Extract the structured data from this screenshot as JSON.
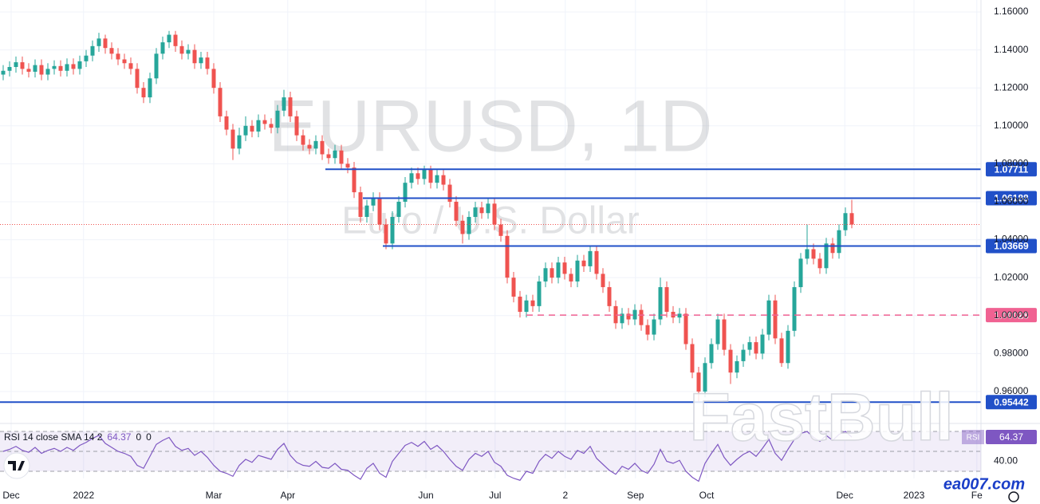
{
  "chart_data": {
    "type": "candlestick",
    "title": "EURUSD, 1D",
    "subtitle": "Euro / U.S. Dollar",
    "colors": {
      "up": "#26a69a",
      "down": "#ef5350"
    },
    "grid": true,
    "xlim": [
      -0.5,
      153.25
    ],
    "xticks": [
      {
        "value": 1.25,
        "label": "Dec"
      },
      {
        "value": 12.6,
        "label": "2022"
      },
      {
        "value": 33,
        "label": "Mar"
      },
      {
        "value": 44.6,
        "label": "Apr"
      },
      {
        "value": 66.25,
        "label": "Jun"
      },
      {
        "value": 77.1,
        "label": "Jul"
      },
      {
        "value": 88.1,
        "label": "2"
      },
      {
        "value": 99.1,
        "label": "Sep"
      },
      {
        "value": 110.25,
        "label": "Oct"
      },
      {
        "value": 131.9,
        "label": "Dec"
      },
      {
        "value": 142.75,
        "label": "2023"
      },
      {
        "value": 152.6,
        "label": "Fe"
      }
    ],
    "ylim": [
      0.9478,
      1.1663
    ],
    "yticks": [
      {
        "value": 0.96,
        "label": "0.96000"
      },
      {
        "value": 0.98,
        "label": "0.98000"
      },
      {
        "value": 1.0,
        "label": "1.00000"
      },
      {
        "value": 1.02,
        "label": "1.02000"
      },
      {
        "value": 1.04,
        "label": "1.04000"
      },
      {
        "value": 1.06,
        "label": "1.06000"
      },
      {
        "value": 1.08,
        "label": "1.08000"
      },
      {
        "value": 1.1,
        "label": "1.10000"
      },
      {
        "value": 1.12,
        "label": "1.12000"
      },
      {
        "value": 1.14,
        "label": "1.14000"
      },
      {
        "value": 1.16,
        "label": "1.16000"
      }
    ],
    "candles": [
      [
        1.127,
        1.132,
        1.124,
        1.129
      ],
      [
        1.129,
        1.134,
        1.126,
        1.131
      ],
      [
        1.131,
        1.1365,
        1.128,
        1.1335
      ],
      [
        1.1335,
        1.1365,
        1.127,
        1.13
      ],
      [
        1.13,
        1.133,
        1.1255,
        1.1285
      ],
      [
        1.1285,
        1.135,
        1.1255,
        1.132
      ],
      [
        1.132,
        1.135,
        1.124,
        1.127
      ],
      [
        1.127,
        1.133,
        1.124,
        1.13
      ],
      [
        1.13,
        1.1345,
        1.127,
        1.1315
      ],
      [
        1.1315,
        1.1345,
        1.126,
        1.129
      ],
      [
        1.129,
        1.1355,
        1.126,
        1.1325
      ],
      [
        1.1325,
        1.1355,
        1.127,
        1.13
      ],
      [
        1.13,
        1.137,
        1.127,
        1.134
      ],
      [
        1.134,
        1.14,
        1.131,
        1.137
      ],
      [
        1.137,
        1.145,
        1.134,
        1.142
      ],
      [
        1.142,
        1.149,
        1.139,
        1.146
      ],
      [
        1.146,
        1.148,
        1.138,
        1.141
      ],
      [
        1.141,
        1.144,
        1.135,
        1.138
      ],
      [
        1.138,
        1.141,
        1.132,
        1.135
      ],
      [
        1.135,
        1.138,
        1.13,
        1.133
      ],
      [
        1.133,
        1.136,
        1.127,
        1.13
      ],
      [
        1.13,
        1.133,
        1.117,
        1.12
      ],
      [
        1.12,
        1.123,
        1.112,
        1.115
      ],
      [
        1.115,
        1.128,
        1.112,
        1.125
      ],
      [
        1.125,
        1.141,
        1.122,
        1.138
      ],
      [
        1.138,
        1.147,
        1.135,
        1.144
      ],
      [
        1.144,
        1.15,
        1.141,
        1.148
      ],
      [
        1.148,
        1.15,
        1.139,
        1.142
      ],
      [
        1.142,
        1.145,
        1.135,
        1.138
      ],
      [
        1.138,
        1.143,
        1.135,
        1.14
      ],
      [
        1.14,
        1.143,
        1.13,
        1.133
      ],
      [
        1.133,
        1.139,
        1.13,
        1.136
      ],
      [
        1.136,
        1.139,
        1.127,
        1.13
      ],
      [
        1.13,
        1.133,
        1.117,
        1.12
      ],
      [
        1.12,
        1.123,
        1.102,
        1.105
      ],
      [
        1.105,
        1.108,
        1.095,
        1.098
      ],
      [
        1.098,
        1.101,
        1.082,
        1.088
      ],
      [
        1.088,
        1.099,
        1.085,
        1.095
      ],
      [
        1.095,
        1.105,
        1.092,
        1.1
      ],
      [
        1.1,
        1.103,
        1.094,
        1.097
      ],
      [
        1.097,
        1.106,
        1.094,
        1.103
      ],
      [
        1.103,
        1.106,
        1.098,
        1.101
      ],
      [
        1.101,
        1.104,
        1.096,
        1.099
      ],
      [
        1.099,
        1.111,
        1.096,
        1.108
      ],
      [
        1.108,
        1.119,
        1.105,
        1.115
      ],
      [
        1.115,
        1.118,
        1.102,
        1.105
      ],
      [
        1.105,
        1.108,
        1.092,
        1.095
      ],
      [
        1.095,
        1.098,
        1.087,
        1.09
      ],
      [
        1.09,
        1.093,
        1.085,
        1.088
      ],
      [
        1.088,
        1.095,
        1.085,
        1.092
      ],
      [
        1.092,
        1.095,
        1.082,
        1.085
      ],
      [
        1.085,
        1.088,
        1.08,
        1.083
      ],
      [
        1.083,
        1.09,
        1.08,
        1.087
      ],
      [
        1.087,
        1.09,
        1.077,
        1.08
      ],
      [
        1.08,
        1.083,
        1.075,
        1.078
      ],
      [
        1.078,
        1.081,
        1.062,
        1.065
      ],
      [
        1.065,
        1.068,
        1.049,
        1.052
      ],
      [
        1.052,
        1.061,
        1.049,
        1.058
      ],
      [
        1.058,
        1.065,
        1.055,
        1.062
      ],
      [
        1.062,
        1.065,
        1.045,
        1.048
      ],
      [
        1.048,
        1.051,
        1.035,
        1.038
      ],
      [
        1.038,
        1.055,
        1.035,
        1.052
      ],
      [
        1.052,
        1.063,
        1.049,
        1.06
      ],
      [
        1.06,
        1.073,
        1.057,
        1.07
      ],
      [
        1.07,
        1.078,
        1.067,
        1.075
      ],
      [
        1.075,
        1.078,
        1.069,
        1.072
      ],
      [
        1.072,
        1.079,
        1.069,
        1.077
      ],
      [
        1.077,
        1.079,
        1.067,
        1.07
      ],
      [
        1.07,
        1.077,
        1.067,
        1.074
      ],
      [
        1.074,
        1.077,
        1.066,
        1.069
      ],
      [
        1.069,
        1.072,
        1.057,
        1.06
      ],
      [
        1.06,
        1.063,
        1.047,
        1.05
      ],
      [
        1.05,
        1.053,
        1.038,
        1.043
      ],
      [
        1.043,
        1.055,
        1.04,
        1.052
      ],
      [
        1.052,
        1.06,
        1.049,
        1.057
      ],
      [
        1.057,
        1.06,
        1.051,
        1.054
      ],
      [
        1.054,
        1.062,
        1.051,
        1.059
      ],
      [
        1.059,
        1.062,
        1.045,
        1.048
      ],
      [
        1.048,
        1.051,
        1.039,
        1.042
      ],
      [
        1.042,
        1.045,
        1.017,
        1.02
      ],
      [
        1.02,
        1.023,
        1.007,
        1.01
      ],
      [
        1.01,
        1.013,
        0.999,
        1.002
      ],
      [
        1.002,
        1.011,
        0.999,
        1.008
      ],
      [
        1.008,
        1.011,
        1.002,
        1.005
      ],
      [
        1.005,
        1.021,
        1.002,
        1.018
      ],
      [
        1.018,
        1.028,
        1.015,
        1.025
      ],
      [
        1.025,
        1.028,
        1.017,
        1.02
      ],
      [
        1.02,
        1.031,
        1.017,
        1.028
      ],
      [
        1.028,
        1.031,
        1.019,
        1.022
      ],
      [
        1.022,
        1.025,
        1.015,
        1.018
      ],
      [
        1.018,
        1.032,
        1.015,
        1.029
      ],
      [
        1.029,
        1.032,
        1.023,
        1.026
      ],
      [
        1.026,
        1.037,
        1.023,
        1.034
      ],
      [
        1.034,
        1.037,
        1.019,
        1.022
      ],
      [
        1.022,
        1.025,
        1.012,
        1.015
      ],
      [
        1.015,
        1.018,
        1.002,
        1.005
      ],
      [
        1.005,
        1.008,
        0.993,
        0.996
      ],
      [
        0.996,
        1.004,
        0.993,
        1.001
      ],
      [
        1.001,
        1.004,
        0.995,
        0.998
      ],
      [
        0.998,
        1.006,
        0.995,
        1.003
      ],
      [
        1.003,
        1.006,
        0.992,
        0.995
      ],
      [
        0.995,
        0.998,
        0.987,
        0.99
      ],
      [
        0.99,
        1.001,
        0.987,
        0.998
      ],
      [
        0.998,
        1.02,
        0.995,
        1.015
      ],
      [
        1.015,
        1.018,
        0.999,
        1.002
      ],
      [
        1.002,
        1.005,
        0.996,
        0.999
      ],
      [
        0.999,
        1.004,
        0.996,
        1.001
      ],
      [
        1.001,
        1.004,
        0.982,
        0.985
      ],
      [
        0.985,
        0.988,
        0.967,
        0.97
      ],
      [
        0.97,
        0.973,
        0.954,
        0.96
      ],
      [
        0.96,
        0.978,
        0.957,
        0.975
      ],
      [
        0.975,
        0.988,
        0.972,
        0.985
      ],
      [
        0.985,
        1.001,
        0.982,
        0.998
      ],
      [
        0.998,
        1.001,
        0.979,
        0.982
      ],
      [
        0.982,
        0.985,
        0.964,
        0.97
      ],
      [
        0.97,
        0.979,
        0.967,
        0.976
      ],
      [
        0.976,
        0.985,
        0.973,
        0.982
      ],
      [
        0.982,
        0.989,
        0.979,
        0.986
      ],
      [
        0.986,
        0.989,
        0.977,
        0.98
      ],
      [
        0.98,
        0.993,
        0.977,
        0.99
      ],
      [
        0.99,
        1.011,
        0.987,
        1.008
      ],
      [
        1.008,
        1.011,
        0.985,
        0.988
      ],
      [
        0.988,
        0.991,
        0.973,
        0.975
      ],
      [
        0.975,
        0.995,
        0.972,
        0.992
      ],
      [
        0.992,
        1.018,
        0.989,
        1.015
      ],
      [
        1.015,
        1.033,
        1.012,
        1.03
      ],
      [
        1.03,
        1.048,
        1.027,
        1.035
      ],
      [
        1.035,
        1.038,
        1.027,
        1.03
      ],
      [
        1.03,
        1.033,
        1.022,
        1.025
      ],
      [
        1.025,
        1.041,
        1.022,
        1.038
      ],
      [
        1.038,
        1.041,
        1.03,
        1.033
      ],
      [
        1.033,
        1.048,
        1.03,
        1.045
      ],
      [
        1.045,
        1.057,
        1.042,
        1.054
      ],
      [
        1.054,
        1.061,
        1.046,
        1.048
      ]
    ],
    "levels": [
      {
        "value": 1.07711,
        "color": "#2150c8",
        "dash": false
      },
      {
        "value": 1.06188,
        "color": "#2150c8",
        "dash": false
      },
      {
        "value": 1.03669,
        "color": "#2150c8",
        "dash": false
      },
      {
        "value": 1.00028,
        "color": "#f06292",
        "dash": true
      },
      {
        "value": 0.95442,
        "color": "#2150c8",
        "dash": false
      }
    ],
    "rsi": {
      "type": "line",
      "title": "RSI 14 close SMA 14 2",
      "color": "#7e57c2",
      "status": [
        "0",
        "0"
      ],
      "badge": "RSI",
      "ylim": [
        22.8,
        77.2
      ],
      "yticks": [
        {
          "value": 40,
          "label": "40.00"
        }
      ],
      "bands": [
        70,
        50,
        30
      ],
      "values": [
        50,
        52,
        55,
        51,
        49,
        54,
        48,
        51,
        53,
        50,
        54,
        51,
        56,
        59,
        63,
        66,
        58,
        54,
        50,
        48,
        45,
        36,
        33,
        45,
        57,
        61,
        64,
        55,
        51,
        53,
        46,
        50,
        44,
        36,
        30,
        28,
        25,
        36,
        42,
        39,
        46,
        44,
        42,
        52,
        58,
        46,
        39,
        36,
        35,
        40,
        34,
        33,
        38,
        32,
        31,
        26,
        22,
        33,
        38,
        28,
        24,
        40,
        48,
        56,
        59,
        55,
        60,
        52,
        56,
        50,
        42,
        35,
        31,
        42,
        48,
        45,
        50,
        39,
        35,
        26,
        23,
        21,
        30,
        28,
        40,
        47,
        43,
        50,
        45,
        42,
        51,
        48,
        55,
        43,
        37,
        31,
        27,
        35,
        32,
        38,
        31,
        28,
        37,
        52,
        40,
        38,
        41,
        30,
        24,
        20,
        38,
        48,
        57,
        44,
        36,
        42,
        47,
        50,
        45,
        53,
        62,
        48,
        41,
        52,
        62,
        68,
        70,
        64,
        60,
        66,
        61,
        67,
        70,
        64.37
      ]
    }
  },
  "watermarks": {
    "brand": "FastBull",
    "site": "ea007.com"
  }
}
